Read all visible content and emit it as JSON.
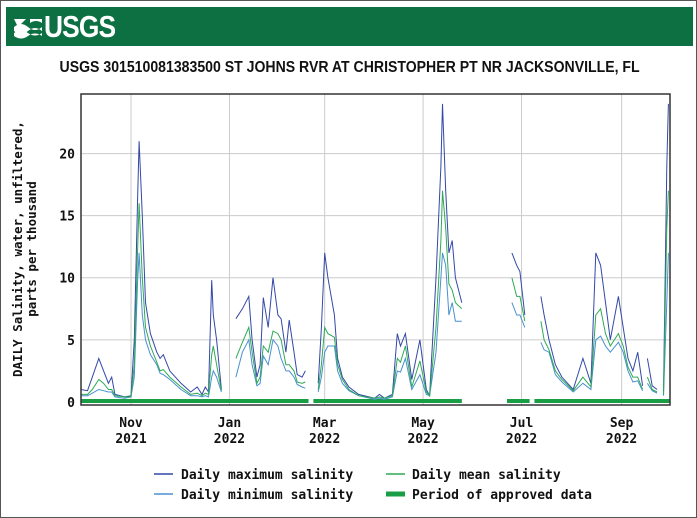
{
  "header": {
    "logo_text": "USGS",
    "brand_color": "#0d7042"
  },
  "chart_data": {
    "type": "line",
    "title": "USGS 301510081383500 ST JOHNS RVR AT CHRISTOPHER PT NR JACKSONVILLE, FL",
    "ylabel_lines": [
      "DAILY Salinity, water, unfiltered,",
      "parts per thousand"
    ],
    "xlabel": "",
    "xlim": [
      "2021-10-01",
      "2022-10-01"
    ],
    "ylim": [
      -0.25,
      24.8
    ],
    "yticks": [
      0,
      5,
      10,
      15,
      20
    ],
    "xticks": [
      {
        "date": "2021-11-01",
        "month": "Nov",
        "year": "2021"
      },
      {
        "date": "2022-01-01",
        "month": "Jan",
        "year": "2022"
      },
      {
        "date": "2022-03-01",
        "month": "Mar",
        "year": "2022"
      },
      {
        "date": "2022-05-01",
        "month": "May",
        "year": "2022"
      },
      {
        "date": "2022-07-01",
        "month": "Jul",
        "year": "2022"
      },
      {
        "date": "2022-09-01",
        "month": "Sep",
        "year": "2022"
      }
    ],
    "grid": true,
    "legend_placement": "bottom",
    "x": [
      "2021-10-01",
      "2021-10-05",
      "2021-10-08",
      "2021-10-12",
      "2021-10-15",
      "2021-10-18",
      "2021-10-20",
      "2021-10-22",
      "2021-10-28",
      "2021-11-01",
      "2021-11-03",
      "2021-11-05",
      "2021-11-06",
      "2021-11-08",
      "2021-11-10",
      "2021-11-13",
      "2021-11-17",
      "2021-11-19",
      "2021-11-21",
      "2021-11-25",
      "2021-12-02",
      "2021-12-08",
      "2021-12-12",
      "2021-12-15",
      "2021-12-17",
      "2021-12-19",
      "2021-12-21",
      "2021-12-22",
      "2021-12-24",
      "2021-12-27",
      "2021-12-29",
      "2022-01-02",
      "2022-01-03",
      "2022-01-05",
      "2022-01-09",
      "2022-01-13",
      "2022-01-15",
      "2022-01-18",
      "2022-01-20",
      "2022-01-22",
      "2022-01-25",
      "2022-01-28",
      "2022-01-31",
      "2022-02-02",
      "2022-02-05",
      "2022-02-07",
      "2022-02-10",
      "2022-02-12",
      "2022-02-15",
      "2022-02-17",
      "2022-02-18",
      "2022-02-25",
      "2022-02-27",
      "2022-03-01",
      "2022-03-03",
      "2022-03-07",
      "2022-03-09",
      "2022-03-12",
      "2022-03-16",
      "2022-03-22",
      "2022-04-01",
      "2022-04-04",
      "2022-04-07",
      "2022-04-12",
      "2022-04-15",
      "2022-04-17",
      "2022-04-20",
      "2022-04-24",
      "2022-04-29",
      "2022-05-03",
      "2022-05-05",
      "2022-05-09",
      "2022-05-12",
      "2022-05-13",
      "2022-05-15",
      "2022-05-17",
      "2022-05-19",
      "2022-05-21",
      "2022-05-25",
      "2022-05-26",
      "2022-06-25",
      "2022-06-28",
      "2022-06-30",
      "2022-07-03",
      "2022-07-04",
      "2022-07-13",
      "2022-07-15",
      "2022-07-18",
      "2022-07-22",
      "2022-07-26",
      "2022-08-02",
      "2022-08-08",
      "2022-08-13",
      "2022-08-16",
      "2022-08-19",
      "2022-08-22",
      "2022-08-25",
      "2022-08-30",
      "2022-09-02",
      "2022-09-05",
      "2022-09-08",
      "2022-09-11",
      "2022-09-14",
      "2022-09-15",
      "2022-09-17",
      "2022-09-20",
      "2022-09-23",
      "2022-09-24",
      "2022-09-27",
      "2022-09-29",
      "2022-09-30"
    ],
    "series": [
      {
        "name": "Daily maximum salinity",
        "color": "#3348a8",
        "values": [
          1.0,
          0.9,
          2.0,
          3.5,
          2.5,
          1.5,
          2.0,
          0.6,
          0.4,
          0.5,
          5,
          16,
          21,
          15,
          8,
          5.5,
          4,
          3.5,
          3.8,
          2.5,
          1.5,
          0.8,
          1.2,
          0.6,
          1.2,
          0.8,
          9.8,
          7,
          5,
          1,
          null,
          0.5,
          null,
          6.7,
          7.5,
          8.5,
          5,
          2,
          3,
          8.4,
          6,
          10,
          7,
          6.7,
          4,
          6.6,
          4,
          2.2,
          2,
          2.5,
          null,
          1.5,
          6,
          12,
          10,
          7,
          3.5,
          2,
          1.2,
          0.6,
          0.3,
          0.6,
          0.3,
          0.6,
          5.5,
          4.5,
          5.5,
          1.8,
          5,
          1,
          0.5,
          10,
          19,
          24,
          17,
          12,
          13,
          10,
          8,
          null,
          12,
          11,
          10.5,
          7,
          null,
          8.5,
          7,
          5,
          3,
          2,
          1,
          3.5,
          1.5,
          12,
          11,
          8,
          5,
          8.5,
          6,
          3.5,
          2.5,
          4,
          1.3,
          null,
          3.5,
          1.3,
          1,
          null,
          0.8,
          19,
          24
        ]
      },
      {
        "name": "Daily mean salinity",
        "color": "#2eaa55",
        "values": [
          0.6,
          0.6,
          1.0,
          1.8,
          1.5,
          1.0,
          1.0,
          0.5,
          0.4,
          0.4,
          3,
          12,
          16,
          10,
          6,
          4.5,
          3.2,
          2.5,
          2.6,
          2,
          1.2,
          0.6,
          0.7,
          0.5,
          0.7,
          0.6,
          3.8,
          4.5,
          3,
          0.9,
          null,
          0.4,
          null,
          3.5,
          4.8,
          6,
          4,
          1.5,
          2,
          4.5,
          4,
          5.7,
          5.5,
          5,
          3,
          3,
          2.5,
          1.6,
          1.5,
          1.6,
          null,
          1,
          3,
          6,
          5.5,
          5.2,
          3,
          1.8,
          1,
          0.5,
          0.3,
          0.4,
          0.3,
          0.5,
          3.5,
          3.2,
          4.5,
          1.2,
          3.3,
          0.8,
          0.5,
          6,
          13,
          17,
          14,
          9.5,
          9,
          8,
          7.5,
          null,
          10,
          8.5,
          8.5,
          6.5,
          null,
          6.5,
          5,
          4.2,
          2.5,
          1.8,
          0.9,
          2,
          1.2,
          7,
          7.5,
          5.5,
          4.5,
          5.5,
          4.5,
          2.8,
          2,
          2,
          1,
          null,
          2,
          1,
          0.8,
          null,
          0.6,
          14,
          17
        ]
      },
      {
        "name": "Daily minimum salinity",
        "color": "#4a90d0",
        "values": [
          0.5,
          0.5,
          0.7,
          1.0,
          0.9,
          0.8,
          0.8,
          0.4,
          0.3,
          0.4,
          2,
          9.5,
          12,
          7,
          5,
          3.8,
          3,
          2.3,
          2.2,
          1.8,
          1.0,
          0.5,
          0.5,
          0.4,
          0.5,
          0.4,
          2,
          2.5,
          2,
          0.8,
          null,
          0.3,
          null,
          2.0,
          4,
          5,
          3,
          1.3,
          1.5,
          3.7,
          3,
          5,
          4.5,
          3.5,
          2.5,
          2.5,
          2,
          1.4,
          1.2,
          1.1,
          null,
          0.8,
          2,
          4,
          4.5,
          4.5,
          2.5,
          1.5,
          0.9,
          0.5,
          0.2,
          0.3,
          0.2,
          0.4,
          2.5,
          2.4,
          3.5,
          1,
          2.2,
          0.6,
          0.5,
          4,
          10,
          12,
          11,
          7,
          8,
          6.5,
          6.5,
          null,
          8,
          7,
          7,
          6,
          null,
          4.8,
          4.2,
          4,
          2.2,
          1.6,
          0.8,
          1.5,
          1,
          5,
          5.3,
          4.5,
          4,
          4.8,
          4,
          2.5,
          1.6,
          1.7,
          0.9,
          null,
          1.5,
          0.9,
          0.7,
          null,
          0.5,
          8,
          12
        ]
      }
    ],
    "approved_periods": {
      "name": "Period of approved data",
      "color": "#1a9e45",
      "ranges": [
        [
          "2021-10-01",
          "2022-02-19"
        ],
        [
          "2022-02-22",
          "2022-05-25"
        ],
        [
          "2022-06-22",
          "2022-07-06"
        ],
        [
          "2022-07-09",
          "2022-10-01"
        ]
      ]
    }
  }
}
